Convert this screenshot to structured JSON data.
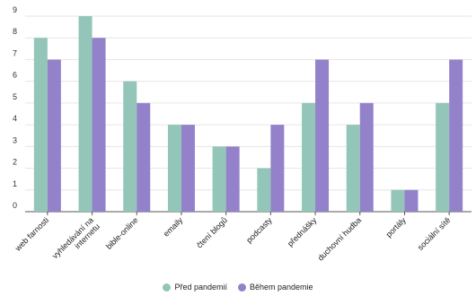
{
  "chart_data": {
    "type": "bar",
    "categories": [
      "web farnosti",
      "vyhledávání na internetu",
      "bible-online",
      "emaily",
      "čtení blogů",
      "podcasty",
      "přednášky",
      "duchovní hudba",
      "portály",
      "sociální sítě"
    ],
    "series": [
      {
        "name": "Před pandemií",
        "values": [
          8,
          9,
          6,
          4,
          3,
          2,
          5,
          4,
          1,
          5
        ],
        "color": "#93c5b8"
      },
      {
        "name": "Během pandemie",
        "values": [
          7,
          8,
          5,
          4,
          3,
          4,
          7,
          5,
          1,
          7
        ],
        "color": "#9382c9"
      }
    ],
    "ylim": [
      0,
      9
    ],
    "yticks": [
      0,
      1,
      2,
      3,
      4,
      5,
      6,
      7,
      8,
      9
    ],
    "grid": true,
    "legend_position": "bottom"
  }
}
